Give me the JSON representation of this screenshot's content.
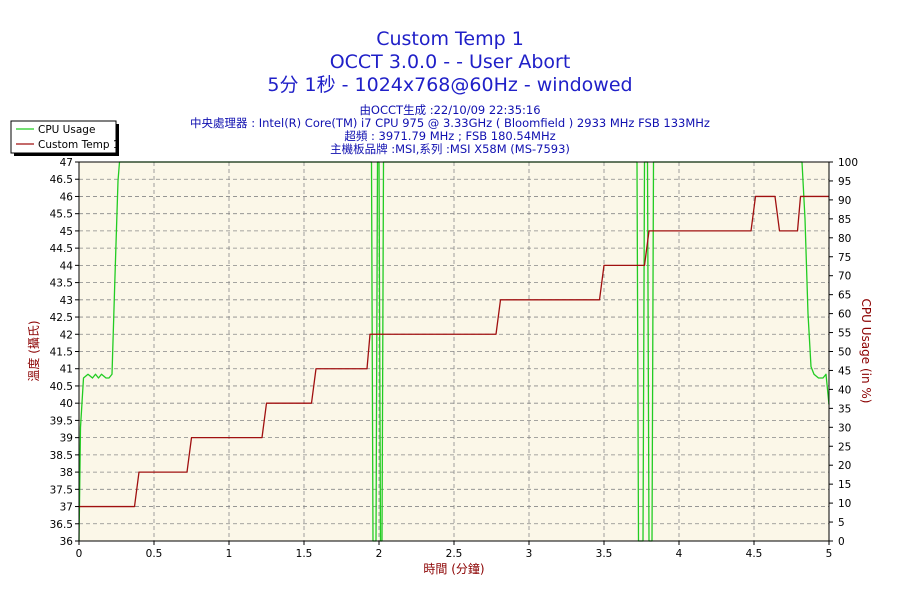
{
  "colors": {
    "plot_bg": "#FBF7E8",
    "grid": "#888888",
    "title": "#2020C8",
    "info": "#1010B0",
    "left_axis_label": "#8B0000",
    "right_axis_label": "#8B0000",
    "x_axis_label": "#8B0000",
    "cpu": "#22CC22",
    "temp": "#A01010"
  },
  "header": {
    "title_line1": "Custom Temp 1",
    "title_line2": "OCCT 3.0.0 -  - User Abort",
    "title_line3": "5分 1秒 - 1024x768@60Hz - windowed",
    "info_line1": "由OCCT生成 :22/10/09 22:35:16",
    "info_line2": "中央處理器 : Intel(R) Core(TM) i7 CPU 975 @ 3.33GHz ( Bloomfield ) 2933 MHz FSB 133MHz",
    "info_line3": "超頻 : 3971.79 MHz ; FSB 180.54MHz",
    "info_line4": "主機板品牌 :MSI,系列 :MSI X58M (MS-7593)"
  },
  "chart_data": {
    "type": "line",
    "xlabel": "時間 (分鐘)",
    "ylabel_left": "溫度 (攝氏)",
    "ylabel_right": "CPU Usage (in %)",
    "xlim": [
      0,
      5
    ],
    "ylim_left": [
      36,
      47
    ],
    "ylim_right": [
      0,
      100
    ],
    "x_ticks": [
      "0",
      "0.5",
      "1",
      "1.5",
      "2",
      "2.5",
      "3",
      "3.5",
      "4",
      "4.5",
      "5"
    ],
    "y_left_ticks": [
      "36",
      "36.5",
      "37",
      "37.5",
      "38",
      "38.5",
      "39",
      "39.5",
      "40",
      "40.5",
      "41",
      "41.5",
      "42",
      "42.5",
      "43",
      "43.5",
      "44",
      "44.5",
      "45",
      "45.5",
      "46",
      "46.5",
      "47"
    ],
    "y_right_ticks": [
      "0",
      "5",
      "10",
      "15",
      "20",
      "25",
      "30",
      "35",
      "40",
      "45",
      "50",
      "55",
      "60",
      "65",
      "70",
      "75",
      "80",
      "85",
      "90",
      "95",
      "100"
    ],
    "grid": true,
    "legend_position": "top-left outside",
    "series": [
      {
        "name": "CPU Usage",
        "axis": "right",
        "color": "#22CC22",
        "points": [
          [
            0.0,
            0
          ],
          [
            0.01,
            30
          ],
          [
            0.03,
            43
          ],
          [
            0.06,
            44
          ],
          [
            0.09,
            43
          ],
          [
            0.11,
            44
          ],
          [
            0.13,
            43
          ],
          [
            0.15,
            44
          ],
          [
            0.18,
            43
          ],
          [
            0.2,
            43
          ],
          [
            0.22,
            44
          ],
          [
            0.24,
            70
          ],
          [
            0.26,
            95
          ],
          [
            0.27,
            100
          ],
          [
            1.95,
            100
          ],
          [
            1.96,
            0
          ],
          [
            1.98,
            0
          ],
          [
            1.99,
            100
          ],
          [
            2.0,
            100
          ],
          [
            2.01,
            0
          ],
          [
            2.02,
            0
          ],
          [
            2.03,
            100
          ],
          [
            3.72,
            100
          ],
          [
            3.73,
            0
          ],
          [
            3.76,
            0
          ],
          [
            3.77,
            100
          ],
          [
            3.79,
            100
          ],
          [
            3.8,
            0
          ],
          [
            3.82,
            0
          ],
          [
            3.83,
            100
          ],
          [
            4.82,
            100
          ],
          [
            4.84,
            85
          ],
          [
            4.86,
            60
          ],
          [
            4.88,
            46
          ],
          [
            4.9,
            44
          ],
          [
            4.93,
            43
          ],
          [
            4.96,
            43
          ],
          [
            4.98,
            44
          ],
          [
            5.0,
            36
          ]
        ]
      },
      {
        "name": "Custom Temp 1",
        "axis": "left",
        "color": "#A01010",
        "points": [
          [
            0.0,
            37
          ],
          [
            0.37,
            37
          ],
          [
            0.4,
            38
          ],
          [
            0.72,
            38
          ],
          [
            0.75,
            39
          ],
          [
            1.22,
            39
          ],
          [
            1.25,
            40
          ],
          [
            1.55,
            40
          ],
          [
            1.58,
            41
          ],
          [
            1.92,
            41
          ],
          [
            1.94,
            42
          ],
          [
            2.78,
            42
          ],
          [
            2.81,
            43
          ],
          [
            3.47,
            43
          ],
          [
            3.5,
            44
          ],
          [
            3.77,
            44
          ],
          [
            3.8,
            45
          ],
          [
            4.48,
            45
          ],
          [
            4.51,
            46
          ],
          [
            4.64,
            46
          ],
          [
            4.67,
            45
          ],
          [
            4.79,
            45
          ],
          [
            4.81,
            46
          ],
          [
            5.0,
            46
          ]
        ]
      }
    ]
  }
}
